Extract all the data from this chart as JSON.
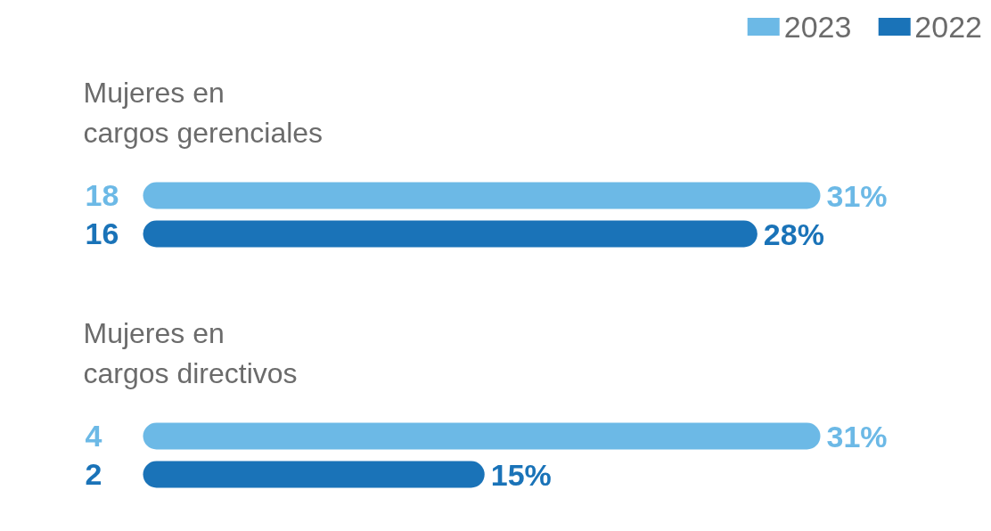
{
  "chart_data": {
    "type": "bar",
    "orientation": "horizontal",
    "xlim": [
      0,
      31
    ],
    "categories": [
      "Mujeres en\ncargos gerenciales",
      "Mujeres en\ncargos directivos"
    ],
    "series": [
      {
        "name": "2023",
        "color": "#6cb9e6",
        "values": [
          31,
          31
        ],
        "value_labels": [
          "31%",
          "31%"
        ]
      },
      {
        "name": "2022",
        "color": "#1a73b8",
        "values": [
          28,
          15
        ],
        "value_labels": [
          "28%",
          "15%"
        ]
      }
    ],
    "annotations": [
      "18",
      "16",
      "4",
      "2"
    ],
    "legend": "top right",
    "grid": false,
    "tick_labels": false
  }
}
